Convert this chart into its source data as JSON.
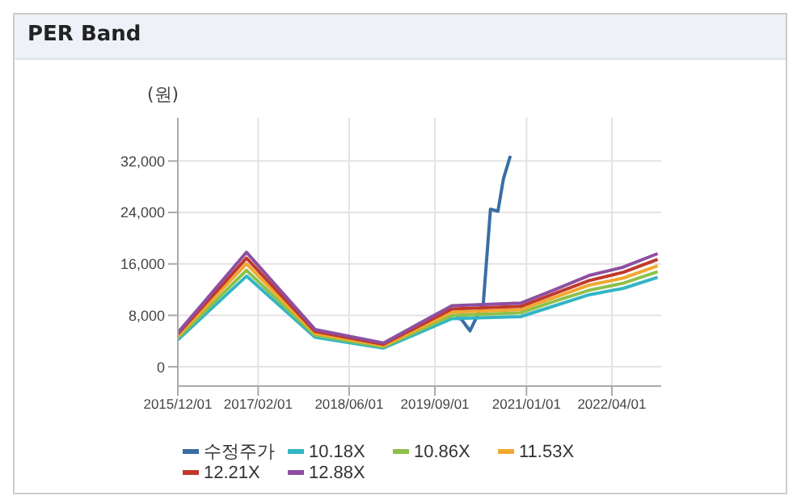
{
  "chart_data": {
    "type": "line",
    "title": "PER Band",
    "ylabel": "(원)",
    "x": [
      "2015-12-01",
      "2016-12-01",
      "2017-12-01",
      "2018-12-01",
      "2019-12-01",
      "2020-12-01",
      "2021-06-01",
      "2021-12-01",
      "2022-06-01",
      "2022-12-01"
    ],
    "series": [
      {
        "name": "수정주가",
        "color": "#3a6ea5",
        "x": [
          "2019-12-25",
          "2020-01-20",
          "2020-03-06",
          "2020-05-16",
          "2020-06-23",
          "2020-08-02",
          "2020-08-31",
          "2020-10-07"
        ],
        "values": [
          7600,
          7400,
          5600,
          9900,
          24500,
          24200,
          29200,
          32800
        ]
      },
      {
        "name": "10.18X",
        "color": "#33b5c5",
        "values": [
          4200,
          14100,
          4600,
          2900,
          7500,
          7800,
          9500,
          11200,
          12200,
          13900
        ]
      },
      {
        "name": "10.86X",
        "color": "#8dc04a",
        "values": [
          4500,
          15000,
          4900,
          3100,
          8000,
          8400,
          10200,
          11900,
          13000,
          14800
        ]
      },
      {
        "name": "11.53X",
        "color": "#f0a830",
        "values": [
          4800,
          16000,
          5200,
          3300,
          8500,
          8900,
          10800,
          12700,
          13800,
          15700
        ]
      },
      {
        "name": "12.21X",
        "color": "#c0392b",
        "values": [
          5100,
          16900,
          5500,
          3500,
          9000,
          9400,
          11400,
          13400,
          14700,
          16700
        ]
      },
      {
        "name": "12.88X",
        "color": "#8e4fa0",
        "values": [
          5300,
          17800,
          5800,
          3700,
          9500,
          9900,
          12000,
          14200,
          15500,
          17600
        ]
      }
    ],
    "xlim": [
      "2015-12-01",
      "2022-12-20"
    ],
    "xticks": [
      {
        "value": "2015-12-01",
        "label": "2015/12/01"
      },
      {
        "value": "2017-02-01",
        "label": "2017/02/01"
      },
      {
        "value": "2018-06-01",
        "label": "2018/06/01"
      },
      {
        "value": "2019-09-01",
        "label": "2019/09/01"
      },
      {
        "value": "2021-01-01",
        "label": "2021/01/01"
      },
      {
        "value": "2022-04-01",
        "label": "2022/04/01"
      }
    ],
    "ylim": [
      -3000,
      38700
    ],
    "yticks": [
      {
        "value": 0,
        "label": "0"
      },
      {
        "value": 8000,
        "label": "8,000"
      },
      {
        "value": 16000,
        "label": "16,000"
      },
      {
        "value": 24000,
        "label": "24,000"
      },
      {
        "value": 32000,
        "label": "32,000"
      }
    ],
    "grid": true,
    "legend": "bottom",
    "marker": "none",
    "line_style": "solid"
  }
}
